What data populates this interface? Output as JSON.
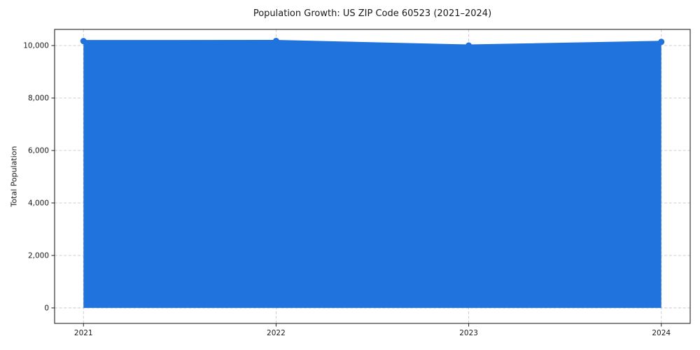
{
  "chart_data": {
    "type": "line",
    "title": "Population Growth: US ZIP Code 60523 (2021–2024)",
    "xlabel": "",
    "ylabel": "Total Population",
    "x": [
      2021,
      2022,
      2023,
      2024
    ],
    "series": [
      {
        "name": "Total Population",
        "values": [
          10170,
          10175,
          10000,
          10140
        ]
      }
    ],
    "area_fill": true,
    "fill_baseline": 0,
    "xtick_labels": [
      "2021",
      "2022",
      "2023",
      "2024"
    ],
    "yticks": [
      0,
      2000,
      4000,
      6000,
      8000,
      10000
    ],
    "ytick_labels": [
      "0",
      "2,000",
      "4,000",
      "6,000",
      "8,000",
      "10,000"
    ],
    "xlim": [
      2020.85,
      2024.15
    ],
    "ylim": [
      -590,
      10615
    ],
    "grid": "dashed, both axes",
    "legend": "none",
    "colors": {
      "line": "#2073dd",
      "marker": "#2073dd",
      "area": "#2073dd",
      "area_opacity": 0.12,
      "grid": "#c9c9c9",
      "spine": "#222222",
      "text": "#1a1a1a",
      "background": "#ffffff"
    }
  }
}
